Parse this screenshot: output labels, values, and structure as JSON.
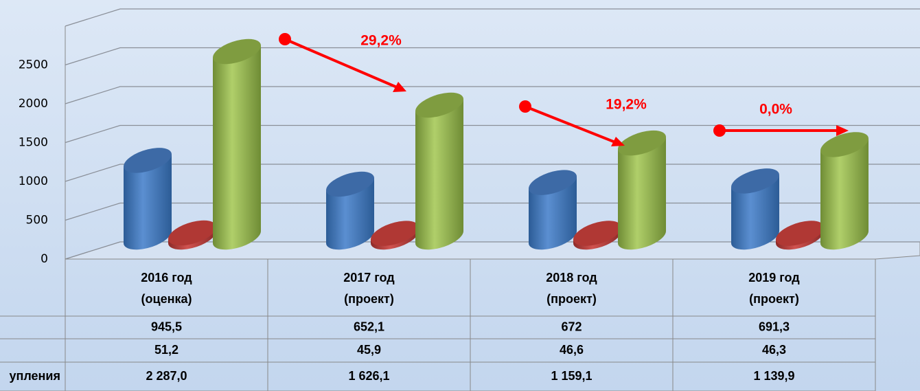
{
  "chart_data": {
    "type": "bar",
    "categories": [
      [
        "2016 год",
        "(оценка)"
      ],
      [
        "2017 год",
        "(проект)"
      ],
      [
        "2018 год",
        "(проект)"
      ],
      [
        "2019 год",
        "(проект)"
      ]
    ],
    "series": [
      {
        "color": "#4a7ebf",
        "values": [
          945.5,
          652.1,
          672,
          691.3
        ],
        "value_labels": [
          "945,5",
          "652,1",
          "672",
          "691,3"
        ]
      },
      {
        "color": "#c0403d",
        "values": [
          51.2,
          45.9,
          46.6,
          46.3
        ],
        "value_labels": [
          "51,2",
          "45,9",
          "46,6",
          "46,3"
        ]
      },
      {
        "name": "упления",
        "color": "#9bbb59",
        "values": [
          2287.0,
          1626.1,
          1159.1,
          1139.9
        ],
        "value_labels": [
          "2 287,0",
          "1 626,1",
          "1 159,1",
          "1 139,9"
        ]
      }
    ],
    "ylim": [
      0,
      3000
    ],
    "yticks": [
      0,
      500,
      1000,
      1500,
      2000,
      2500
    ],
    "grid": true,
    "annotations": [
      "29,2%",
      "19,2%",
      "0,0%"
    ]
  }
}
